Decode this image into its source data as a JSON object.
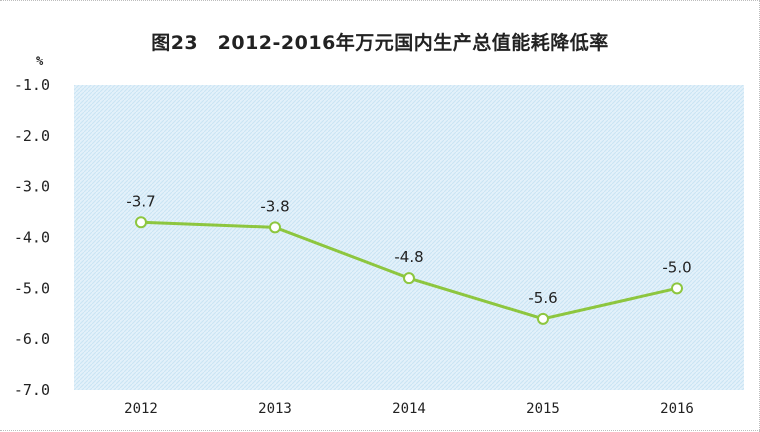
{
  "chart_data": {
    "type": "line",
    "title": "图23　2012-2016年万元国内生产总值能耗降低率",
    "ylabel": "%",
    "xlabel": "",
    "categories": [
      "2012",
      "2013",
      "2014",
      "2015",
      "2016"
    ],
    "series": [
      {
        "values": [
          -3.7,
          -3.8,
          -4.8,
          -5.6,
          -5.0
        ]
      }
    ],
    "data_labels": [
      "-3.7",
      "-3.8",
      "-4.8",
      "-5.6",
      "-5.0"
    ],
    "yticks": [
      "-1.0",
      "-2.0",
      "-3.0",
      "-4.0",
      "-5.0",
      "-6.0",
      "-7.0"
    ],
    "ytick_values": [
      -1,
      -2,
      -3,
      -4,
      -5,
      -6,
      -7
    ],
    "ylim": [
      -7,
      -1
    ],
    "grid": true,
    "legend": "none",
    "colors": {
      "line": "#8dc63f",
      "marker_fill": "#ffffff",
      "plot_background": "#e3f1fa",
      "hatch": "#c9e4f4",
      "axis": "#555555"
    }
  }
}
